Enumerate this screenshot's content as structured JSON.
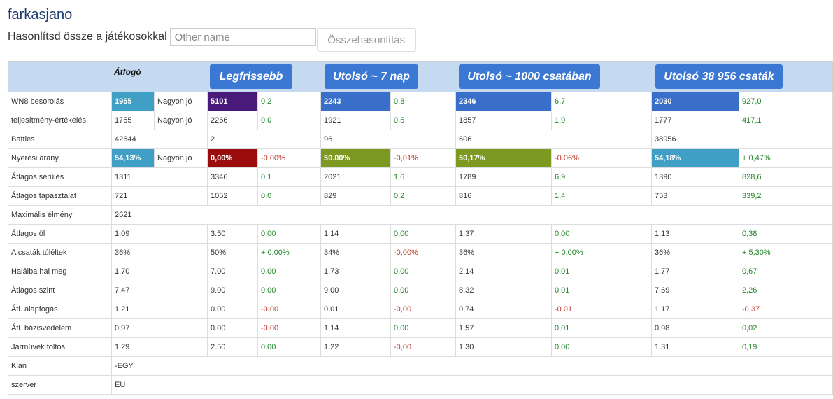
{
  "player": {
    "name": "farkasjano"
  },
  "compare": {
    "label": "Hasonlítsd össze a játékosokkal",
    "input_placeholder": "Other name",
    "button_label": "Összehasonlítás"
  },
  "header": {
    "overall_label": "Átfogó",
    "periods": [
      "Legfrissebb",
      "Utolsó ~ 7 nap",
      "Utolsó ~ 1000 csatában",
      "Utolsó 38 956 csaták"
    ]
  },
  "colors": {
    "header_bg": "#c5daf0",
    "header_button": "#3a78d3",
    "rating_blue_light": "#3f9fc5",
    "rating_blue": "#3a6fc9",
    "rating_purple": "#4a1a7a",
    "rating_red": "#9b0d0d",
    "rating_olive": "#7c9a22",
    "positive": "#22862a",
    "negative": "#c0392b"
  },
  "rows": [
    {
      "label": "WN8 besorolás",
      "overall": "1955",
      "overall_rating": "Nagyon jó",
      "overall_color": "#3f9fc5",
      "p1": "5101",
      "p1_color": "#4a1a7a",
      "d1": "0,2",
      "p2": "2243",
      "p2_color": "#3a6fc9",
      "d2": "0,8",
      "p3": "2346",
      "p3_color": "#3a6fc9",
      "d3": "6,7",
      "p4": "2030",
      "p4_color": "#3a6fc9",
      "d4": "927,0"
    },
    {
      "label": "teljesítmény-értékelés",
      "overall": "1755",
      "overall_rating": "Nagyon jó",
      "p1": "2266",
      "d1": "0,0",
      "p2": "1921",
      "d2": "0,5",
      "p3": "1857",
      "d3": "1,9",
      "p4": "1777",
      "d4": "417,1"
    },
    {
      "label": "Battles",
      "overall": "42644",
      "p1": "2",
      "p2": "96",
      "p3": "606",
      "p4": "38956"
    },
    {
      "label": "Nyerési arány",
      "overall": "54,13%",
      "overall_rating": "Nagyon jó",
      "overall_color": "#3f9fc5",
      "p1": "0,00%",
      "p1_color": "#9b0d0d",
      "d1": "-0,00%",
      "p2": "50.00%",
      "p2_color": "#7c9a22",
      "d2": "-0,01%",
      "p3": "50,17%",
      "p3_color": "#7c9a22",
      "d3": "-0.06%",
      "p4": "54,18%",
      "p4_color": "#3f9fc5",
      "d4": "+ 0,47%"
    },
    {
      "label": "Átlagos sérülés",
      "overall": "1311",
      "p1": "3346",
      "d1": "0,1",
      "p2": "2021",
      "d2": "1,6",
      "p3": "1789",
      "d3": "6,9",
      "p4": "1390",
      "d4": "828,6"
    },
    {
      "label": "Átlagos tapasztalat",
      "overall": "721",
      "p1": "1052",
      "d1": "0,0",
      "p2": "829",
      "d2": "0,2",
      "p3": "816",
      "d3": "1,4",
      "p4": "753",
      "d4": "339,2"
    },
    {
      "label": "Maximális élmény",
      "overall": "2621"
    },
    {
      "label": "Átlagos öl",
      "overall": "1.09",
      "p1": "3.50",
      "d1": "0,00",
      "p2": "1.14",
      "d2": "0,00",
      "p3": "1.37",
      "d3": "0,00",
      "p4": "1.13",
      "d4": "0,38"
    },
    {
      "label": "A csaták túléltek",
      "overall": "36%",
      "p1": "50%",
      "d1": "+ 0,00%",
      "p2": "34%",
      "d2": "-0,00%",
      "p3": "36%",
      "d3": "+ 0,00%",
      "p4": "36%",
      "d4": "+ 5,30%"
    },
    {
      "label": "Halálba hal meg",
      "overall": "1,70",
      "p1": "7.00",
      "d1": "0,00",
      "p2": "1,73",
      "d2": "0,00",
      "p3": "2.14",
      "d3": "0,01",
      "p4": "1,77",
      "d4": "0,67"
    },
    {
      "label": "Átlagos szint",
      "overall": "7,47",
      "p1": "9.00",
      "d1": "0,00",
      "p2": "9.00",
      "d2": "0,00",
      "p3": "8.32",
      "d3": "0,01",
      "p4": "7,69",
      "d4": "2,26"
    },
    {
      "label": "Átl. alapfogás",
      "overall": "1.21",
      "p1": "0.00",
      "d1": "-0,00",
      "p2": "0,01",
      "d2": "-0,00",
      "p3": "0,74",
      "d3": "-0.01",
      "p4": "1.17",
      "d4": "-0,37"
    },
    {
      "label": "Átl. bázisvédelem",
      "overall": "0,97",
      "p1": "0.00",
      "d1": "-0,00",
      "p2": "1.14",
      "d2": "0,00",
      "p3": "1,57",
      "d3": "0,01",
      "p4": "0,98",
      "d4": "0,02"
    },
    {
      "label": "Járművek foltos",
      "overall": "1.29",
      "p1": "2.50",
      "d1": "0,00",
      "p2": "1.22",
      "d2": "-0,00",
      "p3": "1.30",
      "d3": "0,00",
      "p4": "1.31",
      "d4": "0,19"
    },
    {
      "label": "Klán",
      "overall": "-EGY"
    },
    {
      "label": "szerver",
      "overall": "EU"
    }
  ]
}
